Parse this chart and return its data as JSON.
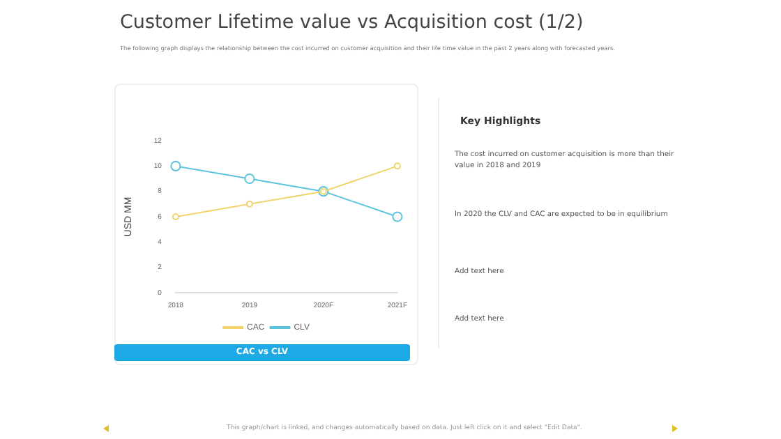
{
  "chart_data": {
    "type": "line",
    "title": "Customer Lifetime value vs Acquisition cost (1/2)",
    "subtitle": "The following graph displays the relationship between the cost incurred on customer acquisition and their life time value in the past 2 years along with forecasted years.",
    "ylabel": "USD MM",
    "categories": [
      "2018",
      "2019",
      "2020F",
      "2021F"
    ],
    "series": [
      {
        "name": "CAC",
        "color": "#f2d36b",
        "values": [
          6,
          7,
          8,
          10
        ]
      },
      {
        "name": "CLV",
        "color": "#5cc3de",
        "values": [
          10,
          9,
          8,
          6
        ]
      }
    ],
    "ylim": [
      0,
      12
    ],
    "yticks": [
      0,
      2,
      4,
      6,
      8,
      10,
      12
    ],
    "grid": false,
    "legend": "bottom",
    "marker": "circle",
    "line_style": "solid",
    "annotations": [
      "CAC vs CLV",
      "Key Highlights",
      "The cost incurred on customer acquisition is more than their value in 2018 and 2019",
      "In 2020 the CLV and CAC are expected to be in equilibrium",
      "Add text here",
      "Add text here",
      "This graph/chart is linked, and changes automatically based on data. Just left click on it and select \"Edit Data\"."
    ]
  }
}
